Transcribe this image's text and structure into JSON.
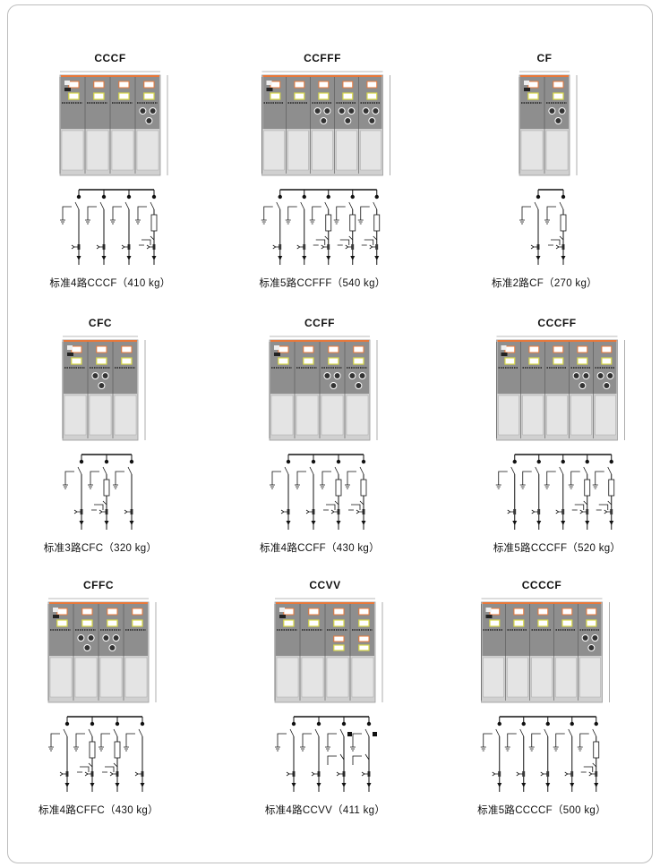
{
  "items": [
    {
      "title": "CCCF",
      "units": "CCCF",
      "caption": "标准4路CCCF（410 kg）"
    },
    {
      "title": "CCFFF",
      "units": "CCFFF",
      "caption": "标准5路CCFFF（540 kg）"
    },
    {
      "title": "CF",
      "units": "CF",
      "caption": "标准2路CF（270 kg）"
    },
    {
      "title": "CFC",
      "units": "CFC",
      "caption": "标准3路CFC（320 kg）"
    },
    {
      "title": "CCFF",
      "units": "CCFF",
      "caption": "标准4路CCFF（430 kg）"
    },
    {
      "title": "CCCFF",
      "units": "CCCFF",
      "caption": "标准5路CCCFF（520 kg）"
    },
    {
      "title": "CFFC",
      "units": "CFFC",
      "caption": "标准4路CFFC（430 kg）"
    },
    {
      "title": "CCVV",
      "units": "CCVV",
      "caption": "标准4路CCVV（411 kg）"
    },
    {
      "title": "CCCCF",
      "units": "CCCCF",
      "caption": "标准5路CCCCF（500 kg）"
    }
  ],
  "colors": {
    "busbar_accent": "#e8783a",
    "panel_upper": "#8e8e8e",
    "panel_lower": "#e4e4e4",
    "indicator": "#d8d84a"
  }
}
